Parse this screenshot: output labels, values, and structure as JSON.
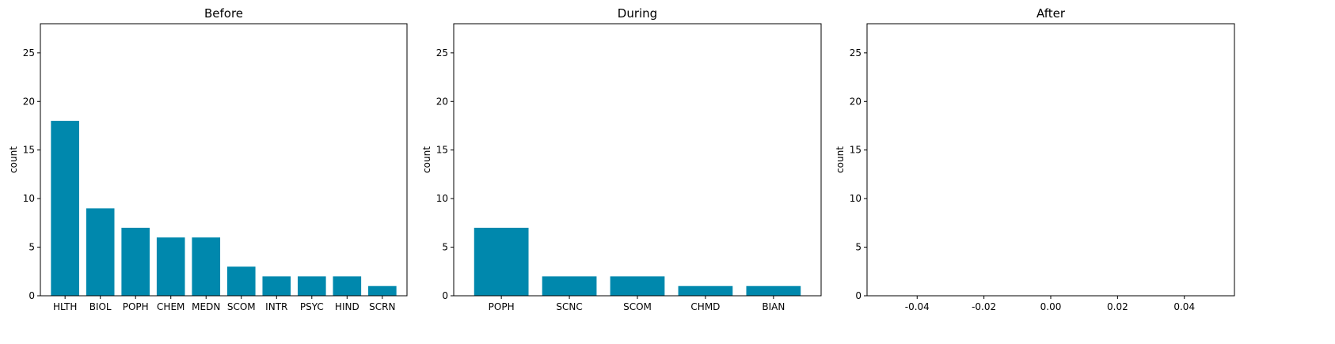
{
  "chart_data": [
    {
      "type": "bar",
      "title": "Before",
      "ylabel": "count",
      "xlabel": "",
      "ylim": [
        0,
        28
      ],
      "yticks": [
        0,
        5,
        10,
        15,
        20,
        25
      ],
      "categories": [
        "HLTH",
        "BIOL",
        "POPH",
        "CHEM",
        "MEDN",
        "SCOM",
        "INTR",
        "PSYC",
        "HIND",
        "SCRN"
      ],
      "values": [
        18,
        9,
        7,
        6,
        6,
        3,
        2,
        2,
        2,
        1
      ],
      "color": "#0088ad",
      "grid": false
    },
    {
      "type": "bar",
      "title": "During",
      "ylabel": "count",
      "xlabel": "",
      "ylim": [
        0,
        28
      ],
      "yticks": [
        0,
        5,
        10,
        15,
        20,
        25
      ],
      "categories": [
        "POPH",
        "SCNC",
        "SCOM",
        "CHMD",
        "BIAN"
      ],
      "values": [
        7,
        2,
        2,
        1,
        1
      ],
      "color": "#0088ad",
      "grid": false
    },
    {
      "type": "bar",
      "title": "After",
      "ylabel": "count",
      "xlabel": "",
      "ylim": [
        0,
        28
      ],
      "yticks": [
        0,
        5,
        10,
        15,
        20,
        25
      ],
      "xlim": [
        -0.055,
        0.055
      ],
      "xticks": [
        "-0.04",
        "-0.02",
        "0.00",
        "0.02",
        "0.04"
      ],
      "xtick_values": [
        -0.04,
        -0.02,
        0.0,
        0.02,
        0.04
      ],
      "categories": [],
      "values": [],
      "color": "#0088ad",
      "grid": false
    }
  ]
}
